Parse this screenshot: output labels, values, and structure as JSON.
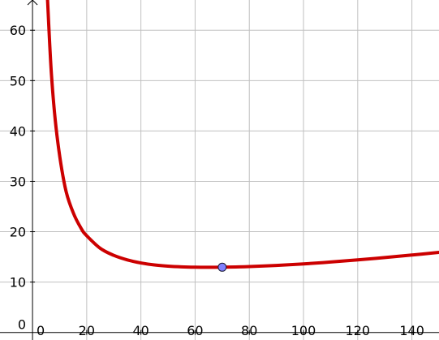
{
  "chart_data": {
    "type": "line",
    "title": "",
    "xlabel": "",
    "ylabel": "",
    "xlim": [
      -12,
      150
    ],
    "ylim": [
      -1.5,
      66
    ],
    "grid": true,
    "x_ticks": [
      0,
      20,
      40,
      60,
      80,
      100,
      120,
      140
    ],
    "y_ticks": [
      0,
      10,
      20,
      30,
      40,
      50,
      60
    ],
    "x_tick_labels": [
      "0",
      "20",
      "40",
      "60",
      "80",
      "100",
      "120",
      "140"
    ],
    "y_tick_labels": [
      "0",
      "10",
      "20",
      "30",
      "40",
      "50",
      "60"
    ],
    "series": [
      {
        "color": "#cc0000",
        "x": [
          5.5,
          7,
          9,
          12,
          15,
          18,
          20,
          25,
          30,
          35,
          40,
          45,
          50,
          55,
          60,
          65,
          70,
          75,
          80,
          90,
          100,
          110,
          120,
          130,
          140,
          150
        ],
        "y": [
          66.5,
          51.1,
          39.2,
          28.9,
          23.8,
          20.6,
          19.2,
          16.7,
          15.3,
          14.4,
          13.8,
          13.4,
          13.16,
          13.02,
          12.95,
          12.93,
          12.95,
          13.0,
          13.07,
          13.3,
          13.6,
          13.98,
          14.4,
          14.87,
          15.37,
          15.9
        ]
      }
    ],
    "points": [
      {
        "x": 70,
        "y": 12.95,
        "color": "#8080ff"
      }
    ]
  }
}
